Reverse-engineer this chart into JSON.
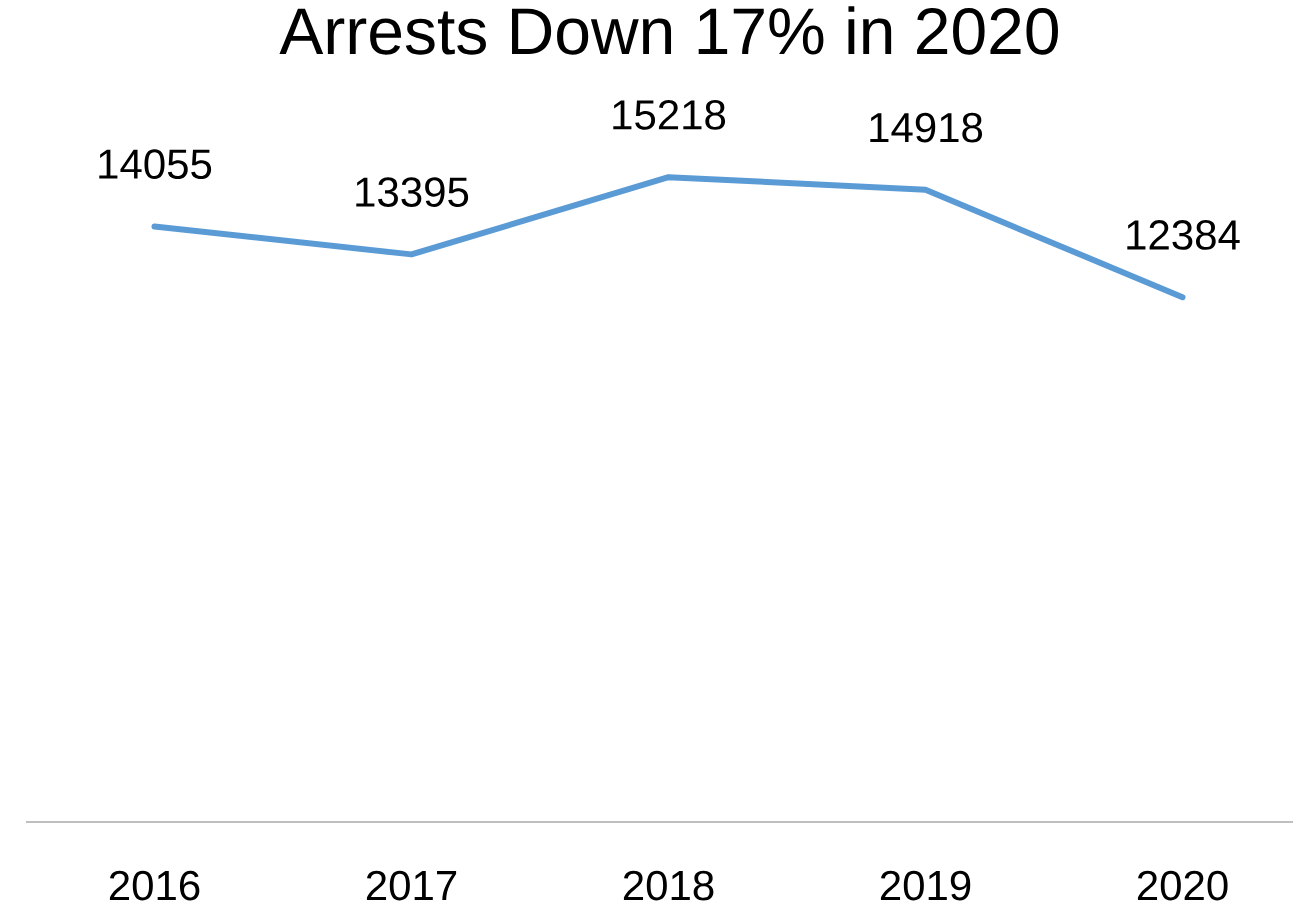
{
  "chart_data": {
    "type": "line",
    "title": "Arrests Down 17% in 2020",
    "categories": [
      "2016",
      "2017",
      "2018",
      "2019",
      "2020"
    ],
    "values": [
      14055,
      13395,
      15218,
      14918,
      12384
    ],
    "color": "#5b9bd5",
    "data_labels": true,
    "tick_labels": "x",
    "line_style": "solid"
  }
}
